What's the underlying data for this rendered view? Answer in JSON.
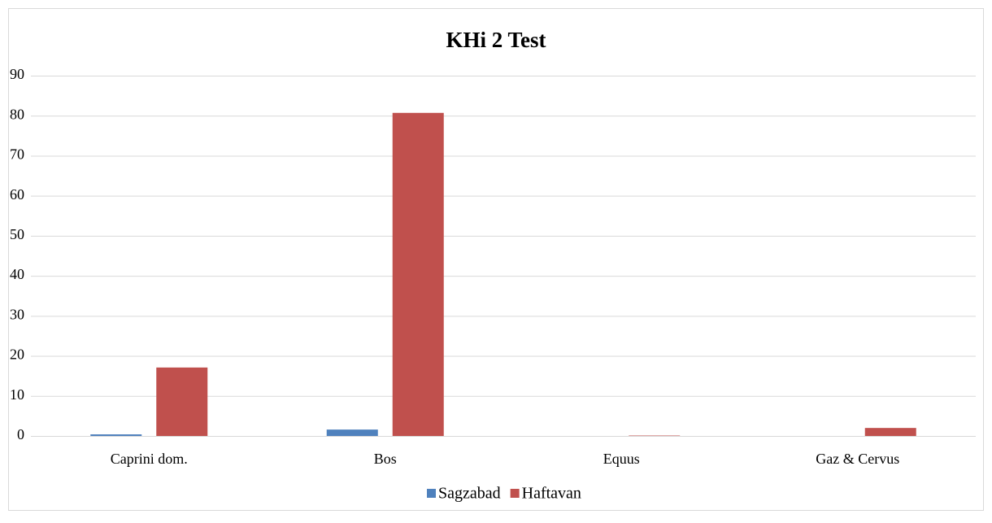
{
  "chart_data": {
    "type": "bar",
    "title": "KHi 2 Test",
    "categories": [
      "Caprini dom.",
      "Bos",
      "Equus",
      "Gaz & Cervus"
    ],
    "series": [
      {
        "name": "Sagzabad",
        "color": "#4f81bd",
        "values": [
          0.4,
          1.6,
          0,
          0
        ]
      },
      {
        "name": "Haftavan",
        "color": "#c0504d",
        "values": [
          17.1,
          80.7,
          0.1,
          2.0
        ]
      }
    ],
    "ylim": [
      0,
      90
    ],
    "yticks": [
      0,
      10,
      20,
      30,
      40,
      50,
      60,
      70,
      80,
      90
    ],
    "grid": true,
    "legend": "bottom"
  }
}
